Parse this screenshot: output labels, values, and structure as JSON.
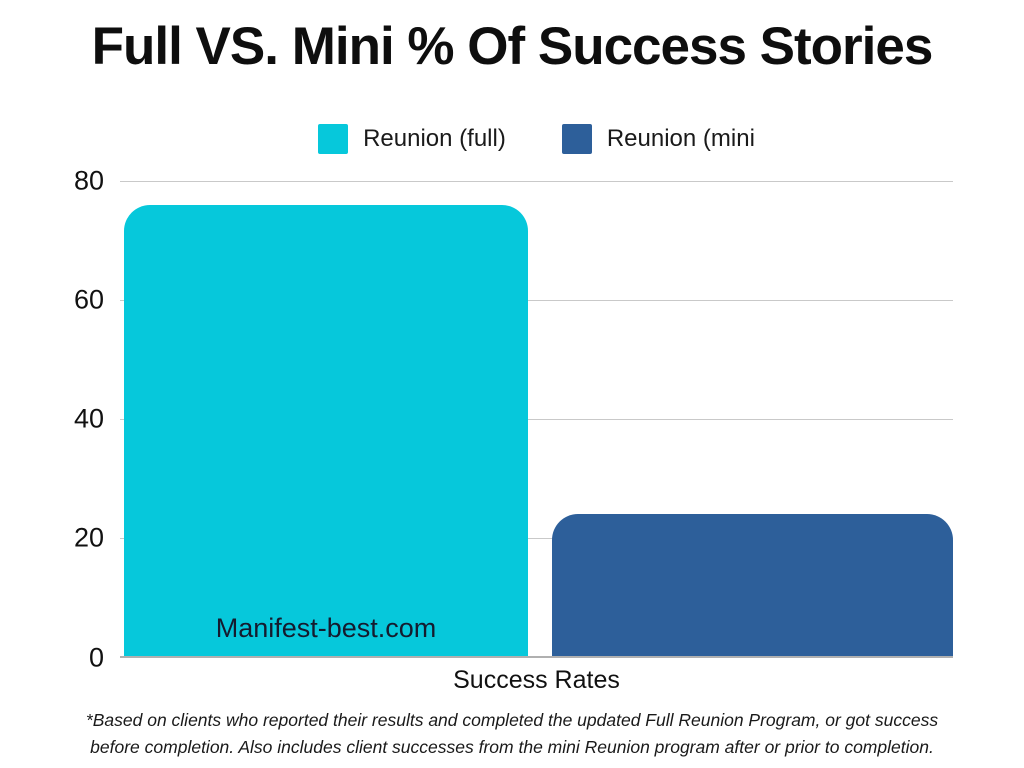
{
  "page": {
    "title": "Full VS. Mini % Of Success Stories",
    "watermark": "Manifest-best.com",
    "footnote_line1": "*Based on clients who reported their results and completed the updated Full Reunion Program, or got success",
    "footnote_line2": "before completion. Also includes client successes from the mini Reunion program after or prior to completion."
  },
  "colors": {
    "full_bar": "#06c8db",
    "mini_bar": "#2d5f9a",
    "gridline": "#c9c9c9",
    "axis_line": "#b0b0b0",
    "title_text": "#0e0e0e",
    "body_text": "#1a1a1a",
    "watermark_text": "#151b2e"
  },
  "chart_data": {
    "type": "bar",
    "title": "Full VS. Mini % Of Success Stories",
    "categories": [
      "Success Rates"
    ],
    "series": [
      {
        "name": "Reunion (full)",
        "values": [
          76
        ],
        "color": "#06c8db"
      },
      {
        "name": "Reunion (mini",
        "values": [
          24
        ],
        "color": "#2d5f9a"
      }
    ],
    "xlabel": "Success Rates",
    "ylabel": "",
    "ylim": [
      0,
      80
    ],
    "yticks": [
      "80",
      "60",
      "40",
      "20",
      "0"
    ],
    "grid": true,
    "legend_position": "top",
    "annotations": [
      "Manifest-best.com"
    ]
  }
}
